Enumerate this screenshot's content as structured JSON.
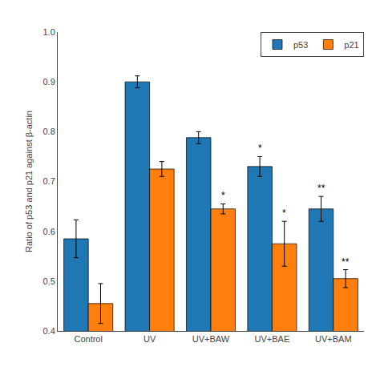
{
  "chart_data": {
    "type": "bar",
    "categories": [
      "Control",
      "UV",
      "UV+BAW",
      "UV+BAE",
      "UV+BAM"
    ],
    "series": [
      {
        "name": "p53",
        "values": [
          0.585,
          0.9,
          0.788,
          0.73,
          0.645
        ],
        "errors": [
          0.038,
          0.012,
          0.012,
          0.02,
          0.025
        ],
        "significance": [
          null,
          null,
          null,
          "*",
          "**"
        ]
      },
      {
        "name": "p21",
        "values": [
          0.455,
          0.725,
          0.645,
          0.575,
          0.505
        ],
        "errors": [
          0.04,
          0.015,
          0.01,
          0.045,
          0.018
        ],
        "significance": [
          null,
          null,
          "*",
          "*",
          "**"
        ]
      }
    ],
    "ylabel": "Ratio of p53 and p21 against β-actin",
    "ylim": [
      0.4,
      1.0
    ],
    "yticks": [
      0.4,
      0.5,
      0.6,
      0.7,
      0.8,
      0.9,
      {
        "value": 1.0,
        "label": "1.0"
      }
    ],
    "grid": false,
    "legend": "upper right"
  }
}
